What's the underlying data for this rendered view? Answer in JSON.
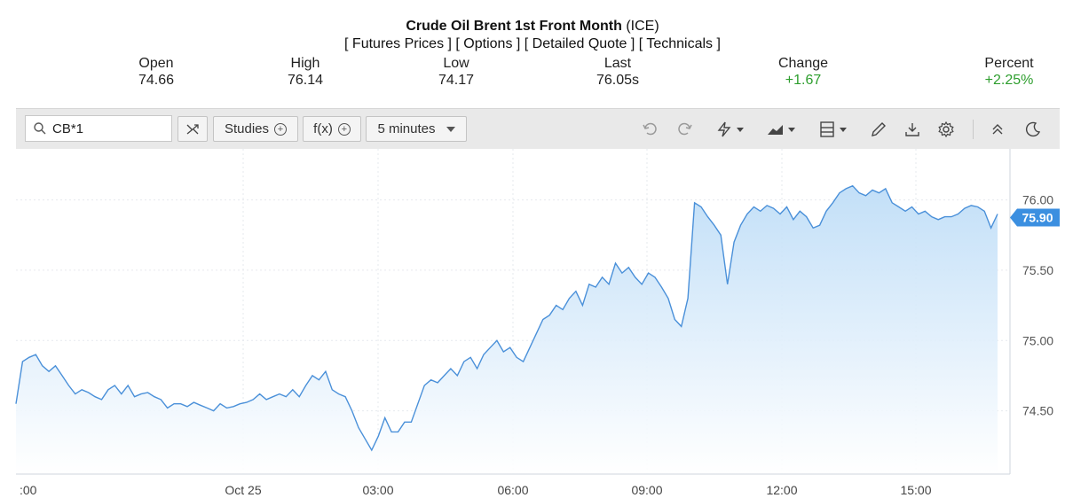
{
  "header": {
    "title": "Crude Oil Brent 1st Front Month",
    "exchange": "(ICE)",
    "links": [
      "[ Futures Prices ]",
      "[ Options ]",
      "[ Detailed Quote ]",
      "[ Technicals ]"
    ]
  },
  "stats": {
    "open": {
      "label": "Open",
      "value": "74.66"
    },
    "high": {
      "label": "High",
      "value": "76.14"
    },
    "low": {
      "label": "Low",
      "value": "74.17"
    },
    "last": {
      "label": "Last",
      "value": "76.05s"
    },
    "change": {
      "label": "Change",
      "value": "+1.67"
    },
    "percent": {
      "label": "Percent",
      "value": "+2.25%"
    }
  },
  "toolbar": {
    "search_value": "CB*1",
    "studies_label": "Studies",
    "fx_label": "f(x)",
    "interval_label": "5 minutes",
    "icons": [
      "compare-icon",
      "undo-icon",
      "redo-icon",
      "flash-icon",
      "chart-type-icon",
      "template-icon",
      "draw-icon",
      "download-icon",
      "settings-icon",
      "collapse-icon",
      "dark-mode-icon"
    ]
  },
  "colors": {
    "line": "#4a90d9",
    "fill_top": "#bcdcf7",
    "fill_bottom": "#ffffff",
    "badge": "#3b8fe0",
    "green": "#2e9e2e"
  },
  "chart_data": {
    "type": "area",
    "xlabels": [
      ":00",
      "Oct 25",
      "03:00",
      "06:00",
      "09:00",
      "12:00",
      "15:00"
    ],
    "yticks": [
      "76.00",
      "75.50",
      "75.00",
      "74.50"
    ],
    "ylim": [
      74.05,
      76.3
    ],
    "current_value": "75.90",
    "grid": true,
    "values": [
      74.55,
      74.85,
      74.88,
      74.9,
      74.82,
      74.78,
      74.82,
      74.75,
      74.68,
      74.62,
      74.65,
      74.63,
      74.6,
      74.58,
      74.65,
      74.68,
      74.62,
      74.68,
      74.6,
      74.62,
      74.63,
      74.6,
      74.58,
      74.52,
      74.55,
      74.55,
      74.53,
      74.56,
      74.54,
      74.52,
      74.5,
      74.55,
      74.52,
      74.53,
      74.55,
      74.56,
      74.58,
      74.62,
      74.58,
      74.6,
      74.62,
      74.6,
      74.65,
      74.6,
      74.68,
      74.75,
      74.72,
      74.78,
      74.65,
      74.62,
      74.6,
      74.5,
      74.38,
      74.3,
      74.22,
      74.32,
      74.45,
      74.35,
      74.35,
      74.42,
      74.42,
      74.55,
      74.68,
      74.72,
      74.7,
      74.75,
      74.8,
      74.75,
      74.85,
      74.88,
      74.8,
      74.9,
      74.95,
      75.0,
      74.92,
      74.95,
      74.88,
      74.85,
      74.95,
      75.05,
      75.15,
      75.18,
      75.25,
      75.22,
      75.3,
      75.35,
      75.25,
      75.4,
      75.38,
      75.45,
      75.4,
      75.55,
      75.48,
      75.52,
      75.45,
      75.4,
      75.48,
      75.45,
      75.38,
      75.3,
      75.15,
      75.1,
      75.3,
      75.98,
      75.95,
      75.88,
      75.82,
      75.75,
      75.4,
      75.7,
      75.82,
      75.9,
      75.95,
      75.92,
      75.96,
      75.94,
      75.9,
      75.95,
      75.86,
      75.92,
      75.88,
      75.8,
      75.82,
      75.92,
      75.98,
      76.05,
      76.08,
      76.1,
      76.05,
      76.03,
      76.07,
      76.05,
      76.08,
      75.98,
      75.95,
      75.92,
      75.95,
      75.9,
      75.92,
      75.88,
      75.86,
      75.88,
      75.88,
      75.9,
      75.94,
      75.96,
      75.95,
      75.92,
      75.8,
      75.9
    ]
  }
}
